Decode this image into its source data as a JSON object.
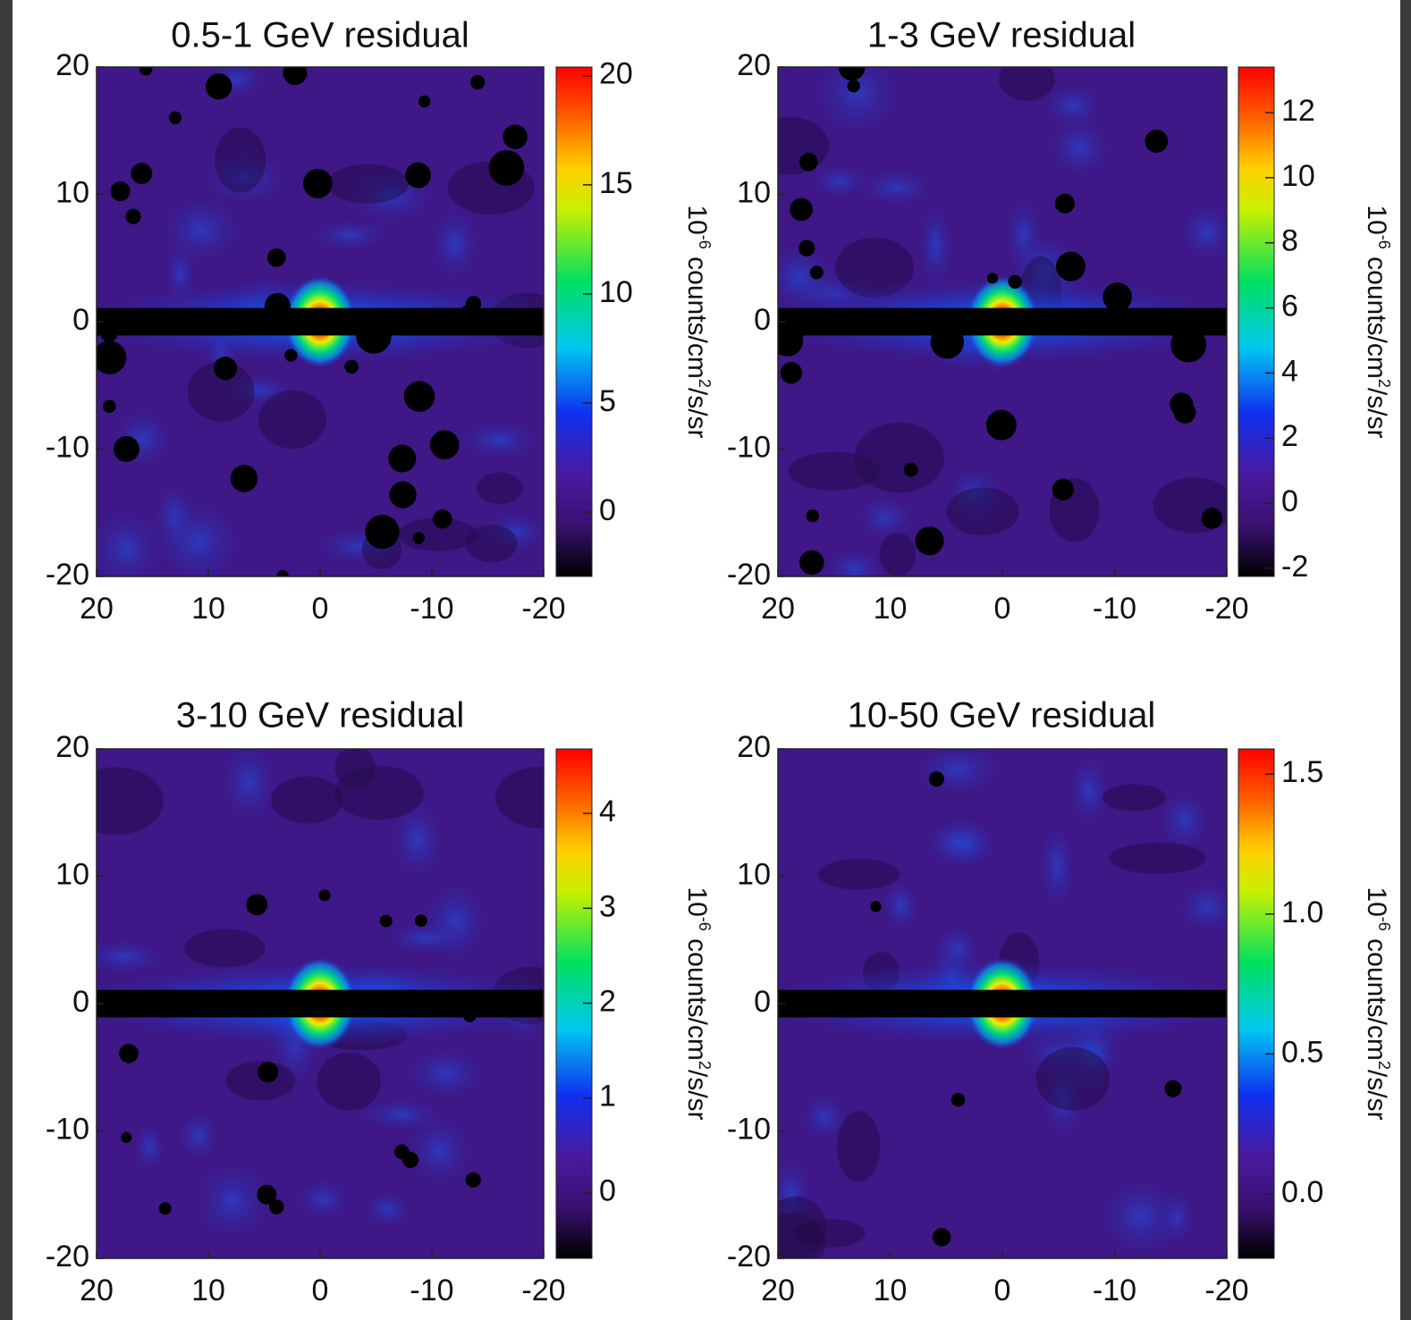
{
  "chart_data": [
    {
      "type": "heatmap",
      "title": "0.5-1 GeV residual",
      "xlim": [
        20,
        -20
      ],
      "ylim": [
        -20,
        20
      ],
      "xticks": [
        20,
        10,
        0,
        -10,
        -20
      ],
      "yticks": [
        -20,
        -10,
        0,
        10,
        20
      ],
      "colorbar": {
        "clim": [
          -2.95,
          20.4
        ],
        "ticks": [
          0,
          5,
          10,
          15,
          20
        ],
        "label": {
          "base": "10",
          "exp": "-6",
          "unit": " counts/cm",
          "unit_exp": "2",
          "rest": "/s/sr"
        }
      }
    },
    {
      "type": "heatmap",
      "title": "1-3 GeV residual",
      "xlim": [
        20,
        -20
      ],
      "ylim": [
        -20,
        20
      ],
      "xticks": [
        20,
        10,
        0,
        -10,
        -20
      ],
      "yticks": [
        -20,
        -10,
        0,
        10,
        20
      ],
      "colorbar": {
        "clim": [
          -2.25,
          13.4
        ],
        "ticks": [
          -2,
          0,
          2,
          4,
          6,
          8,
          10,
          12
        ],
        "label": {
          "base": "10",
          "exp": "-6",
          "unit": " counts/cm",
          "unit_exp": "2",
          "rest": "/s/sr"
        }
      }
    },
    {
      "type": "heatmap",
      "title": "3-10 GeV residual",
      "xlim": [
        20,
        -20
      ],
      "ylim": [
        -20,
        20
      ],
      "xticks": [
        20,
        10,
        0,
        -10,
        -20
      ],
      "yticks": [
        -20,
        -10,
        0,
        10,
        20
      ],
      "colorbar": {
        "clim": [
          -0.69,
          4.68
        ],
        "ticks": [
          0,
          1,
          2,
          3,
          4
        ],
        "label": {
          "base": "10",
          "exp": "-6",
          "unit": " counts/cm",
          "unit_exp": "2",
          "rest": "/s/sr"
        }
      }
    },
    {
      "type": "heatmap",
      "title": "10-50 GeV residual",
      "xlim": [
        20,
        -20
      ],
      "ylim": [
        -20,
        20
      ],
      "xticks": [
        20,
        10,
        0,
        -10,
        -20
      ],
      "yticks": [
        -20,
        -10,
        0,
        10,
        20
      ],
      "colorbar": {
        "clim": [
          -0.23,
          1.59
        ],
        "ticks": [
          {
            "value": 0,
            "label": "0.0"
          },
          {
            "value": 0.5,
            "label": "0.5"
          },
          {
            "value": 1,
            "label": "1.0"
          },
          {
            "value": 1.5,
            "label": "1.5"
          }
        ],
        "label": {
          "base": "10",
          "exp": "-6",
          "unit": " counts/cm",
          "unit_exp": "2",
          "rest": "/s/sr"
        }
      }
    }
  ]
}
